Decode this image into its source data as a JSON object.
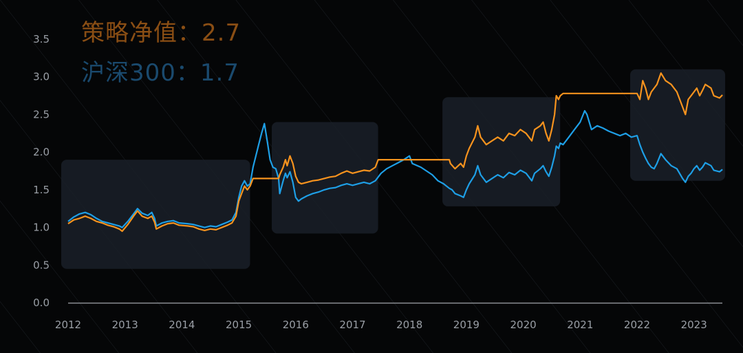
{
  "legend": {
    "strategy": "策略净值：2.7",
    "csi300": "沪深300：1.7"
  },
  "colors": {
    "background": "#050607",
    "strategy": "#f7931e",
    "csi300": "#1e9fe6",
    "csi300_dim": "#164b72",
    "strategy_dim": "#b8620e",
    "axis": "#8c8f94",
    "highlight_box": "#1a2028"
  },
  "chart_data": {
    "type": "line",
    "title": "",
    "xlabel": "",
    "ylabel": "",
    "ylim": [
      0,
      3.5
    ],
    "xlim": [
      2012.0,
      2023.5
    ],
    "yticks": [
      "0.0",
      "0.5",
      "1.0",
      "1.5",
      "2.0",
      "2.5",
      "3.0",
      "3.5"
    ],
    "xticks": [
      "2012",
      "2013",
      "2014",
      "2015",
      "2016",
      "2017",
      "2018",
      "2019",
      "2020",
      "2021",
      "2022",
      "2023"
    ],
    "grid": false,
    "highlight_periods": [
      {
        "x": [
          2012.0,
          2015.15
        ],
        "y": [
          0.45,
          1.9
        ]
      },
      {
        "x": [
          2015.7,
          2017.4
        ],
        "y": [
          0.92,
          2.4
        ]
      },
      {
        "x": [
          2018.7,
          2020.6
        ],
        "y": [
          1.28,
          2.73
        ]
      },
      {
        "x": [
          2022.0,
          2023.5
        ],
        "y": [
          1.62,
          3.1
        ]
      }
    ],
    "series": [
      {
        "name": "策略净值",
        "points": [
          [
            2012.0,
            1.05
          ],
          [
            2012.1,
            1.1
          ],
          [
            2012.2,
            1.12
          ],
          [
            2012.3,
            1.15
          ],
          [
            2012.4,
            1.12
          ],
          [
            2012.5,
            1.08
          ],
          [
            2012.6,
            1.06
          ],
          [
            2012.7,
            1.03
          ],
          [
            2012.8,
            1.01
          ],
          [
            2012.9,
            0.98
          ],
          [
            2012.95,
            0.95
          ],
          [
            2013.05,
            1.04
          ],
          [
            2013.15,
            1.15
          ],
          [
            2013.22,
            1.22
          ],
          [
            2013.3,
            1.15
          ],
          [
            2013.4,
            1.12
          ],
          [
            2013.47,
            1.15
          ],
          [
            2013.52,
            1.07
          ],
          [
            2013.55,
            0.98
          ],
          [
            2013.65,
            1.02
          ],
          [
            2013.75,
            1.05
          ],
          [
            2013.85,
            1.06
          ],
          [
            2013.95,
            1.03
          ],
          [
            2014.1,
            1.02
          ],
          [
            2014.2,
            1.01
          ],
          [
            2014.3,
            0.98
          ],
          [
            2014.4,
            0.96
          ],
          [
            2014.5,
            0.98
          ],
          [
            2014.6,
            0.97
          ],
          [
            2014.7,
            1.0
          ],
          [
            2014.8,
            1.03
          ],
          [
            2014.88,
            1.06
          ],
          [
            2014.95,
            1.15
          ],
          [
            2015.0,
            1.35
          ],
          [
            2015.05,
            1.45
          ],
          [
            2015.1,
            1.55
          ],
          [
            2015.15,
            1.5
          ],
          [
            2015.2,
            1.55
          ],
          [
            2015.25,
            1.65
          ],
          [
            2015.7,
            1.65
          ],
          [
            2015.72,
            1.7
          ],
          [
            2015.78,
            1.8
          ],
          [
            2015.82,
            1.9
          ],
          [
            2015.85,
            1.82
          ],
          [
            2015.9,
            1.95
          ],
          [
            2015.95,
            1.85
          ],
          [
            2016.0,
            1.68
          ],
          [
            2016.05,
            1.6
          ],
          [
            2016.1,
            1.58
          ],
          [
            2016.2,
            1.6
          ],
          [
            2016.3,
            1.62
          ],
          [
            2016.4,
            1.63
          ],
          [
            2016.5,
            1.65
          ],
          [
            2016.6,
            1.67
          ],
          [
            2016.7,
            1.68
          ],
          [
            2016.8,
            1.72
          ],
          [
            2016.9,
            1.75
          ],
          [
            2017.0,
            1.72
          ],
          [
            2017.1,
            1.74
          ],
          [
            2017.2,
            1.76
          ],
          [
            2017.3,
            1.75
          ],
          [
            2017.4,
            1.8
          ],
          [
            2017.45,
            1.9
          ],
          [
            2018.7,
            1.9
          ],
          [
            2018.72,
            1.85
          ],
          [
            2018.8,
            1.78
          ],
          [
            2018.9,
            1.85
          ],
          [
            2018.95,
            1.8
          ],
          [
            2019.0,
            1.95
          ],
          [
            2019.05,
            2.05
          ],
          [
            2019.15,
            2.2
          ],
          [
            2019.2,
            2.35
          ],
          [
            2019.25,
            2.2
          ],
          [
            2019.35,
            2.1
          ],
          [
            2019.45,
            2.15
          ],
          [
            2019.55,
            2.2
          ],
          [
            2019.65,
            2.15
          ],
          [
            2019.75,
            2.25
          ],
          [
            2019.85,
            2.22
          ],
          [
            2019.95,
            2.3
          ],
          [
            2020.05,
            2.25
          ],
          [
            2020.15,
            2.15
          ],
          [
            2020.2,
            2.3
          ],
          [
            2020.3,
            2.35
          ],
          [
            2020.35,
            2.4
          ],
          [
            2020.4,
            2.25
          ],
          [
            2020.45,
            2.15
          ],
          [
            2020.5,
            2.3
          ],
          [
            2020.55,
            2.5
          ],
          [
            2020.58,
            2.75
          ],
          [
            2020.62,
            2.7
          ],
          [
            2020.65,
            2.75
          ],
          [
            2020.7,
            2.78
          ],
          [
            2022.0,
            2.78
          ],
          [
            2022.05,
            2.7
          ],
          [
            2022.1,
            2.95
          ],
          [
            2022.15,
            2.85
          ],
          [
            2022.2,
            2.7
          ],
          [
            2022.25,
            2.8
          ],
          [
            2022.3,
            2.85
          ],
          [
            2022.35,
            2.9
          ],
          [
            2022.42,
            3.05
          ],
          [
            2022.5,
            2.95
          ],
          [
            2022.6,
            2.9
          ],
          [
            2022.7,
            2.8
          ],
          [
            2022.8,
            2.6
          ],
          [
            2022.85,
            2.5
          ],
          [
            2022.9,
            2.7
          ],
          [
            2022.95,
            2.75
          ],
          [
            2023.0,
            2.8
          ],
          [
            2023.05,
            2.85
          ],
          [
            2023.1,
            2.75
          ],
          [
            2023.15,
            2.82
          ],
          [
            2023.2,
            2.9
          ],
          [
            2023.3,
            2.85
          ],
          [
            2023.35,
            2.75
          ],
          [
            2023.45,
            2.72
          ],
          [
            2023.5,
            2.76
          ]
        ]
      },
      {
        "name": "沪深300",
        "points": [
          [
            2012.0,
            1.08
          ],
          [
            2012.1,
            1.14
          ],
          [
            2012.2,
            1.18
          ],
          [
            2012.3,
            1.2
          ],
          [
            2012.4,
            1.17
          ],
          [
            2012.5,
            1.12
          ],
          [
            2012.6,
            1.08
          ],
          [
            2012.7,
            1.06
          ],
          [
            2012.8,
            1.04
          ],
          [
            2012.9,
            1.02
          ],
          [
            2012.95,
            1.0
          ],
          [
            2013.05,
            1.08
          ],
          [
            2013.15,
            1.18
          ],
          [
            2013.22,
            1.25
          ],
          [
            2013.3,
            1.19
          ],
          [
            2013.4,
            1.16
          ],
          [
            2013.47,
            1.2
          ],
          [
            2013.52,
            1.12
          ],
          [
            2013.55,
            1.02
          ],
          [
            2013.65,
            1.06
          ],
          [
            2013.75,
            1.08
          ],
          [
            2013.85,
            1.09
          ],
          [
            2013.95,
            1.06
          ],
          [
            2014.1,
            1.05
          ],
          [
            2014.2,
            1.04
          ],
          [
            2014.3,
            1.02
          ],
          [
            2014.4,
            1.0
          ],
          [
            2014.5,
            1.02
          ],
          [
            2014.6,
            1.01
          ],
          [
            2014.7,
            1.04
          ],
          [
            2014.8,
            1.07
          ],
          [
            2014.88,
            1.1
          ],
          [
            2014.95,
            1.2
          ],
          [
            2015.0,
            1.4
          ],
          [
            2015.05,
            1.55
          ],
          [
            2015.1,
            1.62
          ],
          [
            2015.15,
            1.55
          ],
          [
            2015.2,
            1.58
          ],
          [
            2015.25,
            1.8
          ],
          [
            2015.3,
            1.95
          ],
          [
            2015.35,
            2.1
          ],
          [
            2015.4,
            2.25
          ],
          [
            2015.45,
            2.38
          ],
          [
            2015.5,
            2.15
          ],
          [
            2015.55,
            1.9
          ],
          [
            2015.6,
            1.8
          ],
          [
            2015.65,
            1.78
          ],
          [
            2015.7,
            1.65
          ],
          [
            2015.72,
            1.45
          ],
          [
            2015.78,
            1.62
          ],
          [
            2015.82,
            1.72
          ],
          [
            2015.85,
            1.66
          ],
          [
            2015.9,
            1.74
          ],
          [
            2015.95,
            1.6
          ],
          [
            2016.0,
            1.4
          ],
          [
            2016.05,
            1.35
          ],
          [
            2016.1,
            1.38
          ],
          [
            2016.2,
            1.42
          ],
          [
            2016.3,
            1.45
          ],
          [
            2016.4,
            1.47
          ],
          [
            2016.5,
            1.5
          ],
          [
            2016.6,
            1.52
          ],
          [
            2016.7,
            1.53
          ],
          [
            2016.8,
            1.56
          ],
          [
            2016.9,
            1.58
          ],
          [
            2017.0,
            1.56
          ],
          [
            2017.1,
            1.58
          ],
          [
            2017.2,
            1.6
          ],
          [
            2017.3,
            1.58
          ],
          [
            2017.4,
            1.62
          ],
          [
            2017.5,
            1.72
          ],
          [
            2017.6,
            1.78
          ],
          [
            2017.7,
            1.82
          ],
          [
            2017.8,
            1.86
          ],
          [
            2017.9,
            1.9
          ],
          [
            2018.0,
            1.95
          ],
          [
            2018.05,
            1.85
          ],
          [
            2018.2,
            1.8
          ],
          [
            2018.3,
            1.75
          ],
          [
            2018.4,
            1.7
          ],
          [
            2018.5,
            1.62
          ],
          [
            2018.6,
            1.58
          ],
          [
            2018.7,
            1.52
          ],
          [
            2018.75,
            1.5
          ],
          [
            2018.8,
            1.45
          ],
          [
            2018.9,
            1.42
          ],
          [
            2018.95,
            1.4
          ],
          [
            2019.0,
            1.5
          ],
          [
            2019.05,
            1.58
          ],
          [
            2019.15,
            1.7
          ],
          [
            2019.2,
            1.82
          ],
          [
            2019.25,
            1.7
          ],
          [
            2019.35,
            1.6
          ],
          [
            2019.45,
            1.65
          ],
          [
            2019.55,
            1.7
          ],
          [
            2019.65,
            1.66
          ],
          [
            2019.75,
            1.73
          ],
          [
            2019.85,
            1.7
          ],
          [
            2019.95,
            1.76
          ],
          [
            2020.05,
            1.72
          ],
          [
            2020.15,
            1.62
          ],
          [
            2020.2,
            1.72
          ],
          [
            2020.3,
            1.78
          ],
          [
            2020.35,
            1.82
          ],
          [
            2020.4,
            1.74
          ],
          [
            2020.45,
            1.68
          ],
          [
            2020.5,
            1.8
          ],
          [
            2020.55,
            1.95
          ],
          [
            2020.58,
            2.08
          ],
          [
            2020.62,
            2.05
          ],
          [
            2020.65,
            2.12
          ],
          [
            2020.7,
            2.1
          ],
          [
            2020.8,
            2.2
          ],
          [
            2020.9,
            2.3
          ],
          [
            2021.0,
            2.4
          ],
          [
            2021.08,
            2.55
          ],
          [
            2021.12,
            2.5
          ],
          [
            2021.2,
            2.3
          ],
          [
            2021.3,
            2.35
          ],
          [
            2021.4,
            2.32
          ],
          [
            2021.5,
            2.28
          ],
          [
            2021.6,
            2.25
          ],
          [
            2021.7,
            2.22
          ],
          [
            2021.8,
            2.25
          ],
          [
            2021.9,
            2.2
          ],
          [
            2022.0,
            2.22
          ],
          [
            2022.05,
            2.1
          ],
          [
            2022.1,
            2.0
          ],
          [
            2022.15,
            1.92
          ],
          [
            2022.2,
            1.85
          ],
          [
            2022.25,
            1.8
          ],
          [
            2022.3,
            1.78
          ],
          [
            2022.35,
            1.85
          ],
          [
            2022.42,
            1.98
          ],
          [
            2022.5,
            1.9
          ],
          [
            2022.6,
            1.82
          ],
          [
            2022.7,
            1.78
          ],
          [
            2022.8,
            1.65
          ],
          [
            2022.85,
            1.6
          ],
          [
            2022.9,
            1.68
          ],
          [
            2022.95,
            1.72
          ],
          [
            2023.0,
            1.78
          ],
          [
            2023.05,
            1.82
          ],
          [
            2023.1,
            1.76
          ],
          [
            2023.15,
            1.8
          ],
          [
            2023.2,
            1.86
          ],
          [
            2023.3,
            1.82
          ],
          [
            2023.35,
            1.76
          ],
          [
            2023.45,
            1.74
          ],
          [
            2023.5,
            1.77
          ]
        ]
      }
    ]
  }
}
